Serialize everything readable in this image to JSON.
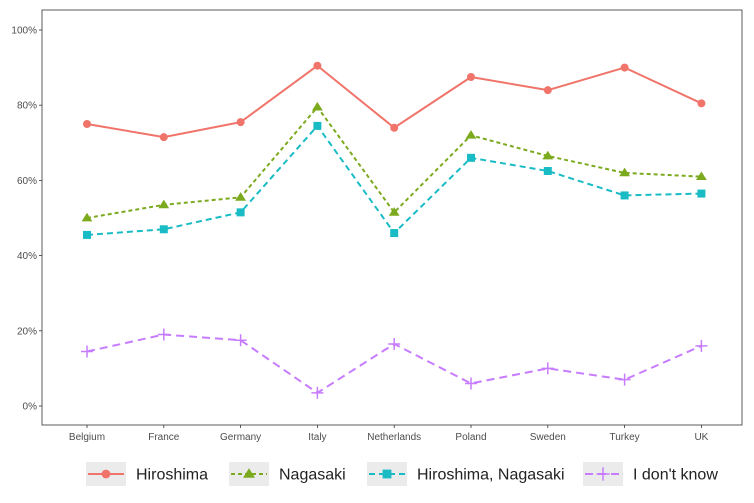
{
  "chart_data": {
    "type": "line",
    "categories": [
      "Belgium",
      "France",
      "Germany",
      "Italy",
      "Netherlands",
      "Poland",
      "Sweden",
      "Turkey",
      "UK"
    ],
    "ylim": [
      0,
      100
    ],
    "yticks": [
      0,
      20,
      40,
      60,
      80,
      100
    ],
    "ytick_labels": [
      "0%",
      "20%",
      "40%",
      "60%",
      "80%",
      "100%"
    ],
    "grid": false,
    "legend_position": "bottom",
    "series": [
      {
        "name": "Hiroshima",
        "values": [
          75,
          71.5,
          75.5,
          90.5,
          74,
          87.5,
          84,
          90,
          80.5
        ],
        "color": "#f0746a",
        "line_style": "solid",
        "marker": "circle"
      },
      {
        "name": "Nagasaki",
        "values": [
          50,
          53.5,
          55.5,
          79.5,
          51.5,
          72,
          66.5,
          62,
          61
        ],
        "color": "#7caa1e",
        "line_style": "dotted",
        "marker": "triangle"
      },
      {
        "name": "Hiroshima, Nagasaki",
        "values": [
          45.5,
          47,
          51.5,
          74.5,
          46,
          66,
          62.5,
          56,
          56.5
        ],
        "color": "#19bcc4",
        "line_style": "dashed",
        "marker": "square"
      },
      {
        "name": "I don't know",
        "values": [
          14.5,
          19,
          17.5,
          3.5,
          16.5,
          6,
          10,
          7,
          16
        ],
        "color": "#c77cff",
        "line_style": "longdash",
        "marker": "plus"
      }
    ]
  }
}
